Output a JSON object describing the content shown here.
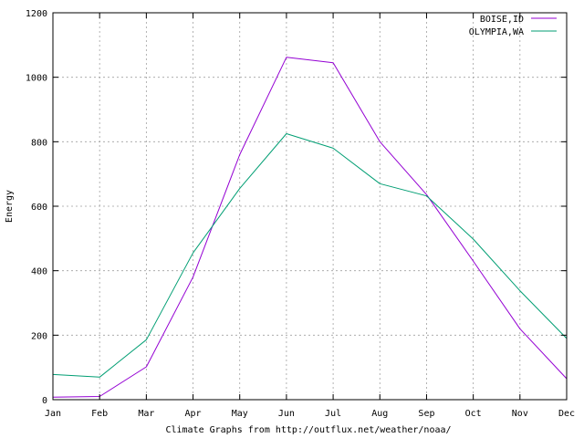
{
  "chart_data": {
    "type": "line",
    "title": "",
    "xlabel": "Climate Graphs from http://outflux.net/weather/noaa/",
    "ylabel": "Energy",
    "categories": [
      "Jan",
      "Feb",
      "Mar",
      "Apr",
      "May",
      "Jun",
      "Jul",
      "Aug",
      "Sep",
      "Oct",
      "Nov",
      "Dec"
    ],
    "ylim": [
      0,
      1200
    ],
    "yticks": [
      "0",
      "200",
      "400",
      "600",
      "800",
      "1000",
      "1200"
    ],
    "grid": true,
    "legend_position": "top-right",
    "series": [
      {
        "name": "BOISE,ID",
        "color": "#9400d3",
        "values": [
          8,
          10,
          102,
          380,
          760,
          1062,
          1045,
          800,
          636,
          430,
          220,
          65
        ]
      },
      {
        "name": "OLYMPIA,WA",
        "color": "#009e73",
        "values": [
          78,
          70,
          186,
          455,
          655,
          825,
          780,
          670,
          632,
          498,
          338,
          190
        ]
      }
    ]
  }
}
